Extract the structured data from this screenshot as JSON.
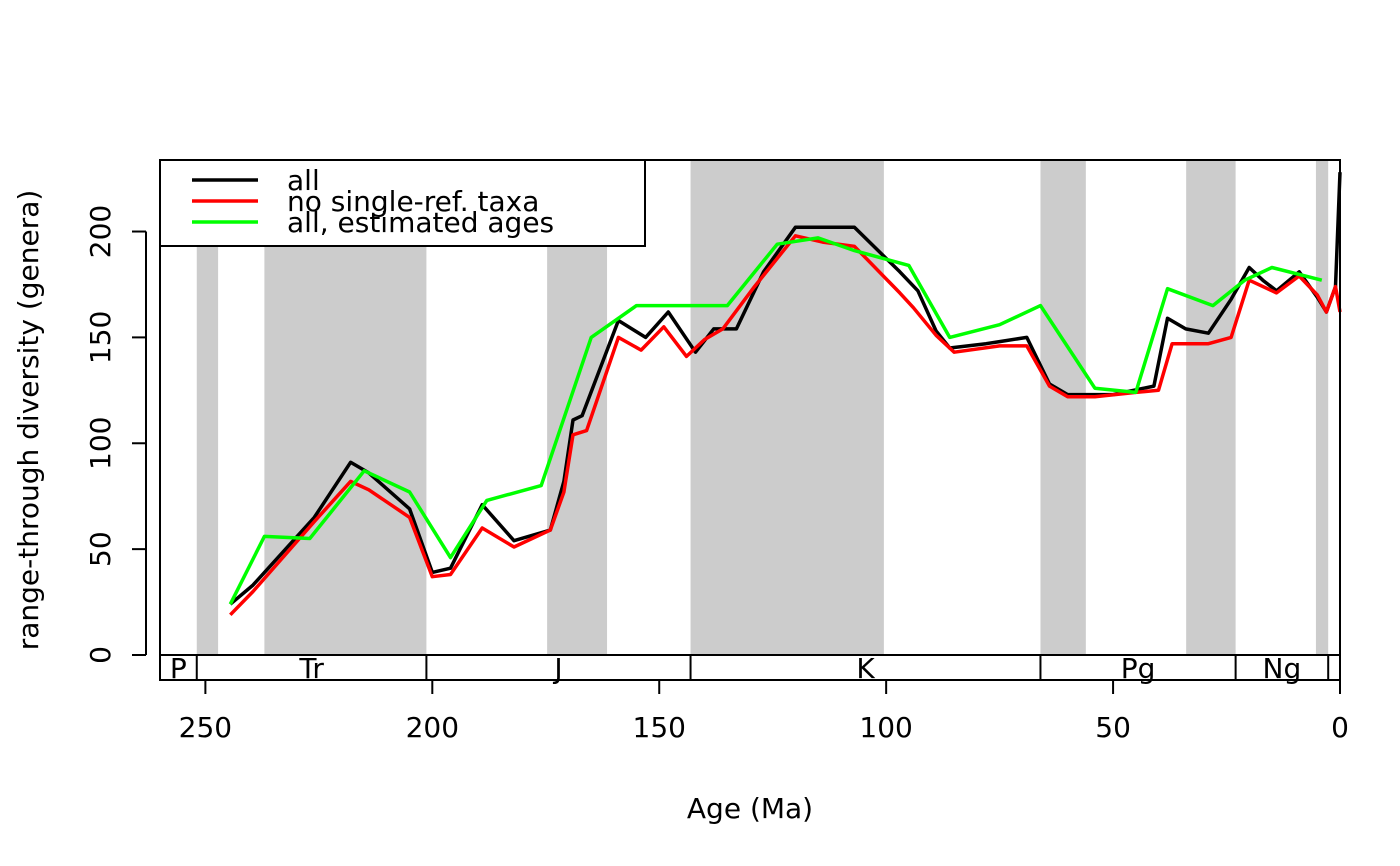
{
  "chart_data": {
    "type": "line",
    "title": "",
    "xlabel": "Age (Ma)",
    "ylabel": "range-through diversity (genera)",
    "xlim": [
      260,
      0
    ],
    "ylim": [
      0,
      230
    ],
    "x_ticks": [
      "250",
      "200",
      "150",
      "100",
      "50",
      "0"
    ],
    "y_ticks": [
      "0",
      "50",
      "100",
      "150",
      "200"
    ],
    "legend_position": "top-left",
    "shaded_intervals": [
      [
        251.9,
        247.2
      ],
      [
        237.0,
        201.3
      ],
      [
        174.7,
        161.5
      ],
      [
        143.1,
        100.5
      ],
      [
        66.0,
        56.0
      ],
      [
        33.9,
        23.0
      ],
      [
        5.3,
        2.6
      ]
    ],
    "periods": [
      {
        "label": "P",
        "start": 260,
        "end": 251.9
      },
      {
        "label": "Tr",
        "start": 251.9,
        "end": 201.3
      },
      {
        "label": "J",
        "start": 201.3,
        "end": 143.1
      },
      {
        "label": "K",
        "start": 143.1,
        "end": 66.0
      },
      {
        "label": "Pg",
        "start": 66.0,
        "end": 23.0
      },
      {
        "label": "Ng",
        "start": 23.0,
        "end": 2.6
      },
      {
        "label": "",
        "start": 2.6,
        "end": 0
      }
    ],
    "series": [
      {
        "name": "all",
        "color": "#000000",
        "points": [
          [
            244.5,
            24
          ],
          [
            239.5,
            33
          ],
          [
            226,
            65
          ],
          [
            218,
            91
          ],
          [
            214,
            86
          ],
          [
            205,
            69
          ],
          [
            200,
            39
          ],
          [
            196,
            41
          ],
          [
            189,
            71
          ],
          [
            182,
            54
          ],
          [
            174,
            59
          ],
          [
            171,
            82
          ],
          [
            169,
            111
          ],
          [
            167,
            113
          ],
          [
            159,
            158
          ],
          [
            153,
            150
          ],
          [
            148,
            162
          ],
          [
            142,
            143
          ],
          [
            138,
            154
          ],
          [
            133,
            154
          ],
          [
            127,
            181
          ],
          [
            120,
            202
          ],
          [
            115,
            202
          ],
          [
            107,
            202
          ],
          [
            97,
            181
          ],
          [
            93,
            172
          ],
          [
            89,
            153
          ],
          [
            86,
            145
          ],
          [
            78,
            147
          ],
          [
            75,
            148
          ],
          [
            69,
            150
          ],
          [
            64,
            128
          ],
          [
            60,
            123
          ],
          [
            55,
            123
          ],
          [
            50,
            123
          ],
          [
            41,
            127
          ],
          [
            38,
            159
          ],
          [
            34,
            154
          ],
          [
            29,
            152
          ],
          [
            24,
            168
          ],
          [
            20,
            183
          ],
          [
            17,
            177
          ],
          [
            14,
            172
          ],
          [
            9,
            181
          ],
          [
            5,
            169
          ],
          [
            3,
            162
          ],
          [
            1,
            174
          ],
          [
            0,
            228
          ]
        ]
      },
      {
        "name": "no single-ref. taxa",
        "color": "#ff0000",
        "points": [
          [
            244.5,
            19
          ],
          [
            239.5,
            30
          ],
          [
            226,
            63
          ],
          [
            218,
            82
          ],
          [
            214,
            78
          ],
          [
            205,
            65
          ],
          [
            200,
            37
          ],
          [
            196,
            38
          ],
          [
            189,
            60
          ],
          [
            182,
            51
          ],
          [
            174,
            59
          ],
          [
            171,
            77
          ],
          [
            169,
            104
          ],
          [
            166,
            106
          ],
          [
            159,
            150
          ],
          [
            154,
            144
          ],
          [
            149,
            155
          ],
          [
            144,
            141
          ],
          [
            140,
            149
          ],
          [
            136,
            154
          ],
          [
            129,
            174
          ],
          [
            120,
            198
          ],
          [
            114,
            195
          ],
          [
            107,
            193
          ],
          [
            97,
            171
          ],
          [
            94,
            164
          ],
          [
            89,
            151
          ],
          [
            85,
            143
          ],
          [
            75,
            146
          ],
          [
            69,
            146
          ],
          [
            64,
            127
          ],
          [
            60,
            122
          ],
          [
            54,
            122
          ],
          [
            45,
            124
          ],
          [
            40,
            125
          ],
          [
            37,
            147
          ],
          [
            29,
            147
          ],
          [
            24,
            150
          ],
          [
            20,
            177
          ],
          [
            14,
            171
          ],
          [
            9,
            179
          ],
          [
            5,
            170
          ],
          [
            3,
            162
          ],
          [
            1,
            174
          ],
          [
            0,
            162
          ]
        ]
      },
      {
        "name": "all, estimated ages",
        "color": "#00ff00",
        "points": [
          [
            244.5,
            24
          ],
          [
            237,
            56
          ],
          [
            227,
            55
          ],
          [
            215,
            87
          ],
          [
            205,
            77
          ],
          [
            196,
            46
          ],
          [
            188,
            73
          ],
          [
            176,
            80
          ],
          [
            165,
            150
          ],
          [
            155,
            165
          ],
          [
            142,
            165
          ],
          [
            135,
            165
          ],
          [
            124,
            194
          ],
          [
            115,
            197
          ],
          [
            107,
            191
          ],
          [
            95,
            184
          ],
          [
            86,
            150
          ],
          [
            75,
            156
          ],
          [
            66,
            165
          ],
          [
            54,
            126
          ],
          [
            45,
            124
          ],
          [
            38,
            173
          ],
          [
            28,
            165
          ],
          [
            21,
            177
          ],
          [
            15,
            183
          ],
          [
            4,
            177
          ]
        ]
      }
    ]
  }
}
